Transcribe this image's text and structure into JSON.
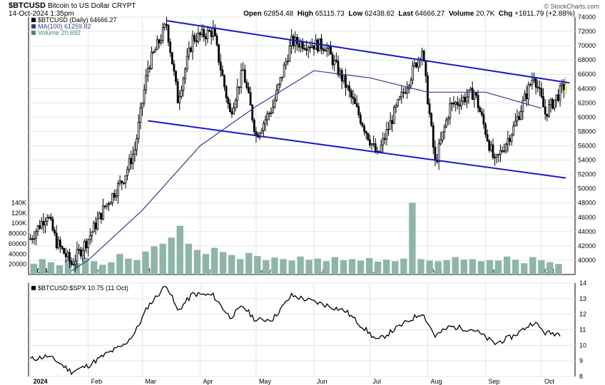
{
  "header": {
    "symbol": "$BTCUSD",
    "description": "Bitcoin to US Dollar",
    "exchange": "CRYPT",
    "date": "14-Oct-2024 1:35pm",
    "open_label": "Open",
    "open": "62854.48",
    "high_label": "High",
    "high": "65115.73",
    "low_label": "Low",
    "low": "62438.82",
    "last_label": "Last",
    "last": "64666.27",
    "volume_label": "Volume",
    "volume": "20.7K",
    "chg_label": "Chg",
    "chg": "+1811.79 (+2.88%)",
    "logo": "© StockCharts.com"
  },
  "legend": {
    "price": "$BTCUSD (Daily) 64666.27",
    "ma": "MA(100) 61259.82",
    "volume": "Volume 20,692"
  },
  "colors": {
    "candle": "#000000",
    "ma": "#3a3a8c",
    "channel": "#1a1acc",
    "volume": "#8fb5a8",
    "last_candle": "#e6b800",
    "ratio": "#000000"
  },
  "chart_data": [
    {
      "type": "candlestick",
      "title": "$BTCUSD (Daily)",
      "x_labels": [
        "2024",
        "Feb",
        "Mar",
        "Apr",
        "May",
        "Jun",
        "Jul",
        "Aug",
        "Sep",
        "Oct"
      ],
      "ylim": [
        38000,
        74000
      ],
      "y_ticks": [
        40000,
        42000,
        44000,
        46000,
        48000,
        50000,
        52000,
        54000,
        56000,
        58000,
        60000,
        62000,
        64000,
        66000,
        68000,
        70000,
        72000,
        74000
      ],
      "price_series": [
        [
          "2024",
          43000
        ],
        [
          "Jan-10",
          46500
        ],
        [
          "Jan-15",
          42500
        ],
        [
          "Jan-23",
          39500
        ],
        [
          "Feb",
          43000
        ],
        [
          "Feb-10",
          47500
        ],
        [
          "Feb-20",
          51500
        ],
        [
          "Feb-26",
          55500
        ],
        [
          "Mar-04",
          67000
        ],
        [
          "Mar-14",
          73000
        ],
        [
          "Mar-20",
          62500
        ],
        [
          "Mar-28",
          71000
        ],
        [
          "Apr-08",
          72000
        ],
        [
          "Apr-17",
          60500
        ],
        [
          "Apr-24",
          66500
        ],
        [
          "May-01",
          57500
        ],
        [
          "May-10",
          61500
        ],
        [
          "May-20",
          70500
        ],
        [
          "Jun-07",
          70000
        ],
        [
          "Jun-18",
          64500
        ],
        [
          "Jul-05",
          54500
        ],
        [
          "Jul-14",
          60500
        ],
        [
          "Jul-29",
          69500
        ],
        [
          "Aug-05",
          53500
        ],
        [
          "Aug-13",
          61500
        ],
        [
          "Aug-26",
          63500
        ],
        [
          "Sep-06",
          53500
        ],
        [
          "Sep-16",
          58500
        ],
        [
          "Sep-27",
          66000
        ],
        [
          "Oct-03",
          60500
        ],
        [
          "Oct-14",
          64666
        ]
      ],
      "ma_series": {
        "name": "MA(100)",
        "points": [
          [
            "Jan-23",
            38500
          ],
          [
            "Feb",
            40000
          ],
          [
            "Mar",
            47000
          ],
          [
            "Apr",
            56000
          ],
          [
            "May",
            61500
          ],
          [
            "Jun",
            66500
          ],
          [
            "Jul",
            65500
          ],
          [
            "Aug",
            63500
          ],
          [
            "Sep",
            63500
          ],
          [
            "Oct",
            61259.82
          ]
        ]
      },
      "channel_lines": [
        {
          "name": "upper",
          "points": [
            [
              "Mar-14",
              73500
            ],
            [
              "Oct-16",
              64800
            ]
          ]
        },
        {
          "name": "lower",
          "points": [
            [
              "Mar-04",
              59500
            ],
            [
              "Oct-14",
              51500
            ]
          ]
        }
      ],
      "volume": {
        "name": "Volume",
        "y_ticks": [
          20000,
          40000,
          60000,
          80000,
          100000,
          120000,
          140000
        ],
        "y_tick_labels": [
          "20000",
          "40000",
          "60000",
          "80000",
          "100K",
          "120K",
          "140K"
        ],
        "ylim": [
          0,
          160000
        ],
        "values": [
          21000,
          30000,
          24000,
          18000,
          28000,
          22000,
          33000,
          26000,
          19000,
          24000,
          40000,
          31000,
          28000,
          45000,
          55000,
          60000,
          72000,
          95000,
          60000,
          48000,
          40000,
          52000,
          44000,
          38000,
          30000,
          42000,
          36000,
          28000,
          33000,
          30000,
          27000,
          35000,
          29000,
          31000,
          26000,
          34000,
          28000,
          30000,
          27000,
          32000,
          25000,
          29000,
          26000,
          31000,
          140000,
          30000,
          27000,
          26000,
          28000,
          34000,
          29000,
          30000,
          26000,
          28000,
          27000,
          35000,
          29000,
          22000,
          34000,
          28000,
          24000,
          20692
        ]
      }
    },
    {
      "type": "line",
      "title": "$BTCUSD:$SPX",
      "legend": "$BTCUSD:$SPX 10.75 (11 Oct)",
      "x_labels": [
        "2024",
        "Feb",
        "Mar",
        "Apr",
        "May",
        "Jun",
        "Jul",
        "Aug",
        "Sep",
        "Oct"
      ],
      "ylim": [
        8,
        14
      ],
      "y_ticks": [
        8,
        9,
        10,
        11,
        12,
        13,
        14
      ],
      "series": [
        [
          "2024",
          9.1
        ],
        [
          "Jan-10",
          9.3
        ],
        [
          "Jan-15",
          9.0
        ],
        [
          "Jan-23",
          8.3
        ],
        [
          "Feb",
          8.7
        ],
        [
          "Feb-10",
          9.4
        ],
        [
          "Feb-20",
          10.0
        ],
        [
          "Feb-26",
          10.8
        ],
        [
          "Mar-04",
          12.5
        ],
        [
          "Mar-14",
          13.9
        ],
        [
          "Mar-20",
          12.2
        ],
        [
          "Mar-28",
          13.3
        ],
        [
          "Apr-08",
          13.2
        ],
        [
          "Apr-17",
          11.8
        ],
        [
          "Apr-24",
          12.5
        ],
        [
          "May-01",
          11.6
        ],
        [
          "May-10",
          11.7
        ],
        [
          "May-20",
          13.2
        ],
        [
          "Jun-07",
          12.6
        ],
        [
          "Jun-18",
          12.2
        ],
        [
          "Jul-05",
          10.3
        ],
        [
          "Jul-14",
          11.0
        ],
        [
          "Jul-29",
          12.1
        ],
        [
          "Aug-05",
          10.6
        ],
        [
          "Aug-13",
          11.2
        ],
        [
          "Aug-26",
          11.0
        ],
        [
          "Sep-06",
          10.1
        ],
        [
          "Sep-16",
          10.6
        ],
        [
          "Sep-27",
          11.5
        ],
        [
          "Oct-03",
          10.8
        ],
        [
          "Oct-11",
          10.75
        ]
      ]
    }
  ]
}
